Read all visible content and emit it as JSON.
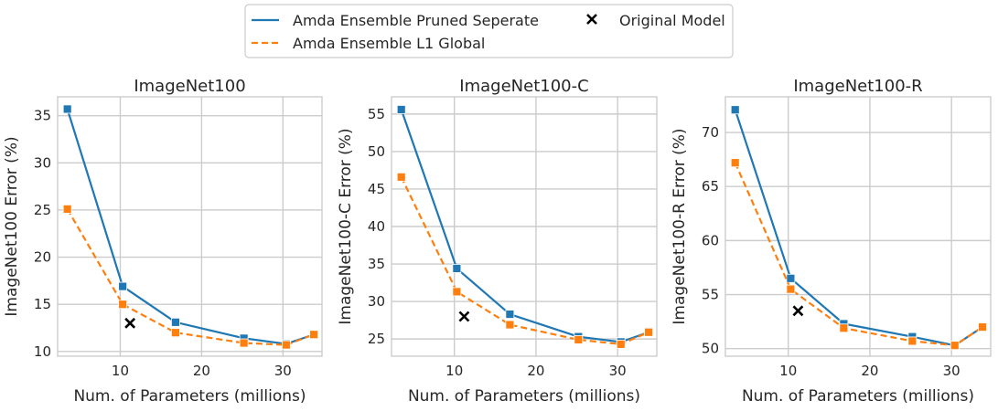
{
  "legend": {
    "items": [
      {
        "label": "Amda Ensemble Pruned Seperate",
        "color": "#1f77b4",
        "style": "solid"
      },
      {
        "label": "Amda Ensemble L1 Global",
        "color": "#ff7f0e",
        "style": "dashed"
      },
      {
        "label": "Original Model",
        "color": "#000000",
        "style": "x-marker"
      }
    ]
  },
  "chart_data": [
    {
      "type": "line",
      "title": "ImageNet100",
      "xlabel": "Num. of Parameters (millions)",
      "ylabel": "ImageNet100 Error (%)",
      "xlim": [
        2.3,
        34.8
      ],
      "ylim": [
        9.5,
        37
      ],
      "xticks": [
        10,
        20,
        30
      ],
      "yticks": [
        10,
        15,
        20,
        25,
        30,
        35
      ],
      "grid": true,
      "series": [
        {
          "name": "Amda Ensemble Pruned Seperate",
          "color": "#1f77b4",
          "style": "solid",
          "marker": "square",
          "x": [
            3.5,
            10.3,
            16.8,
            25.2,
            30.4,
            33.8
          ],
          "y": [
            35.7,
            16.9,
            13.1,
            11.4,
            10.8,
            11.8
          ]
        },
        {
          "name": "Amda Ensemble L1 Global",
          "color": "#ff7f0e",
          "style": "dashed",
          "marker": "square",
          "x": [
            3.5,
            10.3,
            16.8,
            25.2,
            30.4,
            33.8
          ],
          "y": [
            25.1,
            15.0,
            12.0,
            10.9,
            10.7,
            11.8
          ]
        },
        {
          "name": "Original Model",
          "color": "#000000",
          "style": "none",
          "marker": "x",
          "x": [
            11.2
          ],
          "y": [
            13.0
          ]
        }
      ]
    },
    {
      "type": "line",
      "title": "ImageNet100-C",
      "xlabel": "Num. of Parameters (millions)",
      "ylabel": "ImageNet100-C Error (%)",
      "xlim": [
        2.3,
        34.8
      ],
      "ylim": [
        22.7,
        57.3
      ],
      "xticks": [
        10,
        20,
        30
      ],
      "yticks": [
        25,
        30,
        35,
        40,
        45,
        50,
        55
      ],
      "grid": true,
      "series": [
        {
          "name": "Amda Ensemble Pruned Seperate",
          "color": "#1f77b4",
          "style": "solid",
          "marker": "square",
          "x": [
            3.5,
            10.3,
            16.8,
            25.2,
            30.4,
            33.8
          ],
          "y": [
            55.6,
            34.4,
            28.3,
            25.3,
            24.6,
            25.9
          ]
        },
        {
          "name": "Amda Ensemble L1 Global",
          "color": "#ff7f0e",
          "style": "dashed",
          "marker": "square",
          "x": [
            3.5,
            10.3,
            16.8,
            25.2,
            30.4,
            33.8
          ],
          "y": [
            46.6,
            31.3,
            26.9,
            24.9,
            24.3,
            25.9
          ]
        },
        {
          "name": "Original Model",
          "color": "#000000",
          "style": "none",
          "marker": "x",
          "x": [
            11.2
          ],
          "y": [
            28.0
          ]
        }
      ]
    },
    {
      "type": "line",
      "title": "ImageNet100-R",
      "xlabel": "Num. of Parameters (millions)",
      "ylabel": "ImageNet100-R Error (%)",
      "xlim": [
        2.3,
        34.8
      ],
      "ylim": [
        49.3,
        73.3
      ],
      "xticks": [
        10,
        20,
        30
      ],
      "yticks": [
        50,
        55,
        60,
        65,
        70
      ],
      "grid": true,
      "series": [
        {
          "name": "Amda Ensemble Pruned Seperate",
          "color": "#1f77b4",
          "style": "solid",
          "marker": "square",
          "x": [
            3.5,
            10.3,
            16.8,
            25.2,
            30.4,
            33.8
          ],
          "y": [
            72.1,
            56.5,
            52.3,
            51.1,
            50.3,
            52.0
          ]
        },
        {
          "name": "Amda Ensemble L1 Global",
          "color": "#ff7f0e",
          "style": "dashed",
          "marker": "square",
          "x": [
            3.5,
            10.3,
            16.8,
            25.2,
            30.4,
            33.8
          ],
          "y": [
            67.2,
            55.5,
            51.9,
            50.7,
            50.3,
            52.0
          ]
        },
        {
          "name": "Original Model",
          "color": "#000000",
          "style": "none",
          "marker": "x",
          "x": [
            11.2
          ],
          "y": [
            53.5
          ]
        }
      ]
    }
  ]
}
